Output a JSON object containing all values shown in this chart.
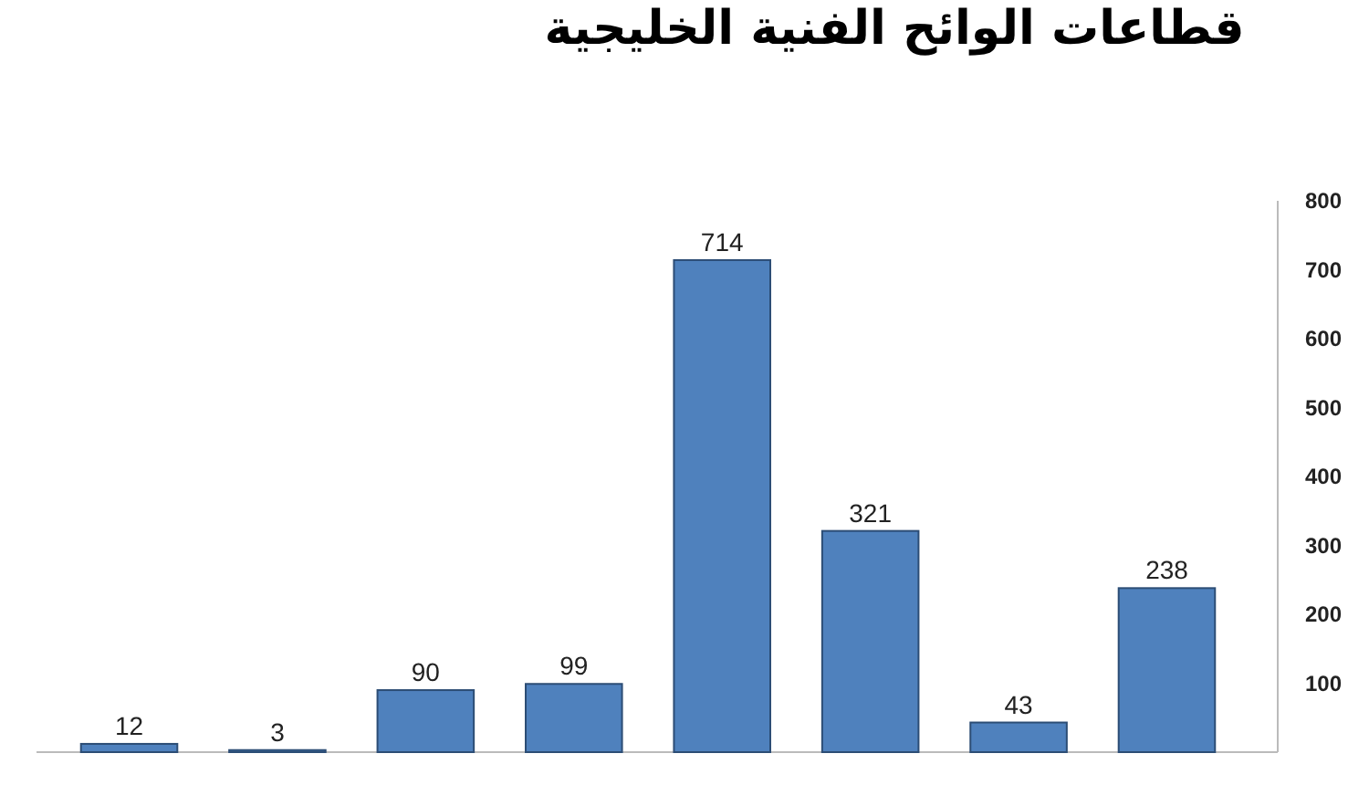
{
  "chart_data": {
    "type": "bar",
    "title": "قطاعات الوائح الفنية الخليجية",
    "categories": [
      null,
      null,
      null,
      null,
      null,
      null,
      null,
      null
    ],
    "values": [
      12,
      3,
      90,
      99,
      714,
      321,
      43,
      238
    ],
    "color": "#4f81bd",
    "ylim": [
      0,
      800
    ],
    "yticks": [
      100,
      200,
      300,
      400,
      500,
      600,
      700,
      800
    ],
    "data_labels": true
  }
}
